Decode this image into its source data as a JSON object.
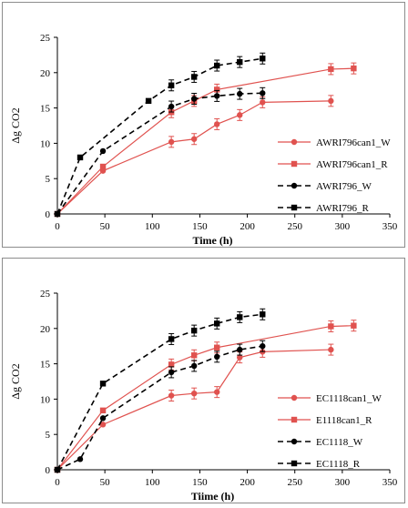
{
  "chart_data": [
    {
      "type": "line",
      "xlabel": "Time (h)",
      "ylabel": "Δg CO2",
      "xlim": [
        0,
        350
      ],
      "ylim": [
        0,
        25
      ],
      "xticks": [
        0,
        50,
        100,
        150,
        200,
        250,
        300,
        350
      ],
      "yticks": [
        0,
        5,
        10,
        15,
        20,
        25
      ],
      "grid": false,
      "legend_position": "right",
      "series": [
        {
          "name": "AWRI796can1_W",
          "color": "#e0524f",
          "marker": "circle",
          "dash": false,
          "x": [
            0,
            48,
            120,
            144,
            168,
            192,
            216,
            288
          ],
          "y": [
            0,
            6.1,
            10.2,
            10.6,
            12.7,
            14.0,
            15.8,
            16.0
          ]
        },
        {
          "name": "AWRI796can1_R",
          "color": "#e0524f",
          "marker": "square",
          "dash": false,
          "x": [
            0,
            48,
            120,
            144,
            168,
            288,
            312
          ],
          "y": [
            0,
            6.7,
            14.4,
            16.0,
            17.6,
            20.5,
            20.6
          ]
        },
        {
          "name": "AWRI796_W",
          "color": "#000000",
          "marker": "circle",
          "dash": true,
          "x": [
            0,
            48,
            120,
            144,
            168,
            192,
            216
          ],
          "y": [
            0,
            8.9,
            15.2,
            16.3,
            16.7,
            17.0,
            17.1
          ]
        },
        {
          "name": "AWRI796_R",
          "color": "#000000",
          "marker": "square",
          "dash": true,
          "x": [
            0,
            24,
            96,
            120,
            144,
            168,
            192,
            216
          ],
          "y": [
            0,
            8.0,
            16.0,
            18.2,
            19.4,
            21.0,
            21.5,
            22.0
          ]
        }
      ]
    },
    {
      "type": "line",
      "xlabel": "Tiime (h)",
      "ylabel": "Δg CO2",
      "xlim": [
        0,
        350
      ],
      "ylim": [
        0,
        25
      ],
      "xticks": [
        0,
        50,
        100,
        150,
        200,
        250,
        300,
        350
      ],
      "yticks": [
        0,
        5,
        10,
        15,
        20,
        25
      ],
      "grid": false,
      "legend_position": "right",
      "series": [
        {
          "name": "EC1118can1_W",
          "color": "#e0524f",
          "marker": "circle",
          "dash": false,
          "x": [
            0,
            48,
            120,
            144,
            168,
            192,
            216,
            288
          ],
          "y": [
            0,
            6.4,
            10.5,
            10.8,
            11.0,
            15.9,
            16.7,
            17.0
          ]
        },
        {
          "name": "E1118can1_R",
          "color": "#e0524f",
          "marker": "square",
          "dash": false,
          "x": [
            0,
            48,
            120,
            144,
            168,
            288,
            312
          ],
          "y": [
            0,
            8.4,
            14.9,
            16.2,
            17.3,
            20.3,
            20.4
          ]
        },
        {
          "name": "EC1118_W",
          "color": "#000000",
          "marker": "circle",
          "dash": true,
          "x": [
            0,
            24,
            48,
            120,
            144,
            168,
            192,
            216
          ],
          "y": [
            0,
            1.5,
            7.3,
            13.8,
            14.7,
            16.0,
            17.0,
            17.5
          ]
        },
        {
          "name": "EC1118_R",
          "color": "#000000",
          "marker": "square",
          "dash": true,
          "x": [
            0,
            48,
            120,
            144,
            168,
            192,
            216
          ],
          "y": [
            0,
            12.2,
            18.5,
            19.7,
            20.7,
            21.6,
            22.0
          ]
        }
      ]
    }
  ]
}
